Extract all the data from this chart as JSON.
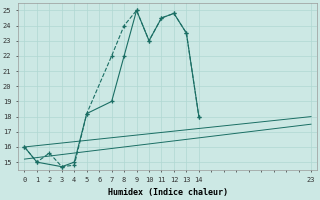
{
  "xlabel": "Humidex (Indice chaleur)",
  "bg_color": "#cce8e4",
  "grid_major_color": "#b0d8d2",
  "grid_minor_color": "#c8e4e0",
  "line_color": "#1a6e64",
  "xlim": [
    -0.5,
    23.5
  ],
  "ylim": [
    14.5,
    25.5
  ],
  "xticks": [
    0,
    1,
    2,
    3,
    4,
    5,
    6,
    7,
    8,
    9,
    10,
    11,
    12,
    13,
    14,
    23
  ],
  "yticks": [
    15,
    16,
    17,
    18,
    19,
    20,
    21,
    22,
    23,
    24,
    25
  ],
  "series1_x": [
    0,
    1,
    2,
    3,
    4,
    5,
    7,
    8,
    9,
    10,
    11,
    12,
    13,
    14
  ],
  "series1_y": [
    16.0,
    15.0,
    15.6,
    14.7,
    14.8,
    18.2,
    22.0,
    24.0,
    25.0,
    23.0,
    24.5,
    24.8,
    23.5,
    18.0
  ],
  "series2_x": [
    0,
    1,
    3,
    4,
    5,
    7,
    8,
    9,
    10,
    11,
    12,
    13,
    14
  ],
  "series2_y": [
    16.0,
    15.0,
    14.7,
    15.0,
    18.2,
    19.0,
    22.0,
    25.0,
    23.0,
    24.5,
    24.8,
    23.5,
    18.0
  ],
  "series3_x": [
    0,
    23
  ],
  "series3_y": [
    16.0,
    18.0
  ],
  "series4_x": [
    0,
    23
  ],
  "series4_y": [
    15.2,
    17.5
  ]
}
